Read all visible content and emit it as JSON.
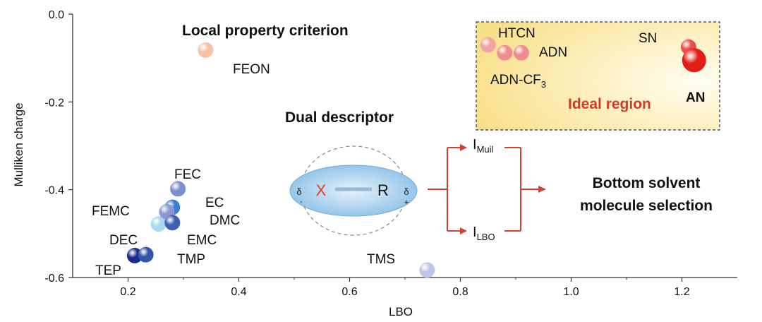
{
  "chart_data": {
    "type": "scatter",
    "xlabel": "LBO",
    "ylabel": "Mulliken charge",
    "xlim": [
      0.1,
      1.3
    ],
    "ylim": [
      -0.6,
      0.0
    ],
    "xticks": [
      0.2,
      0.4,
      0.6,
      0.8,
      1.0,
      1.2
    ],
    "xtick_labels": [
      "0.2",
      "0.4",
      "0.6",
      "0.8",
      "1.0",
      "1.2"
    ],
    "yticks": [
      0.0,
      -0.2,
      -0.4,
      -0.6
    ],
    "ytick_labels": [
      "0.0",
      "-0.2",
      "-0.4",
      "-0.6"
    ],
    "grid": false,
    "points": [
      {
        "label": "FEON",
        "x": 0.34,
        "y": -0.082,
        "color": "#f7c1a6",
        "size": 11
      },
      {
        "label": "FEC",
        "x": 0.29,
        "y": -0.398,
        "color": "#7b8fd0",
        "size": 11
      },
      {
        "label": "FEMC",
        "x": 0.255,
        "y": -0.478,
        "color": "#a8d8f0",
        "size": 11
      },
      {
        "label": "EC",
        "x": 0.28,
        "y": -0.44,
        "color": "#3b7fc8",
        "size": 11
      },
      {
        "label": "DMC",
        "x": 0.27,
        "y": -0.45,
        "color": "#8c98d4",
        "size": 11
      },
      {
        "label": "EMC",
        "x": 0.28,
        "y": -0.475,
        "color": "#3f5fb5",
        "size": 11
      },
      {
        "label": "DEC",
        "x": 0.212,
        "y": -0.55,
        "color": "#1a2c8a",
        "size": 11
      },
      {
        "label": "TMP",
        "x": 0.232,
        "y": -0.548,
        "color": "#2f56a8",
        "size": 11
      },
      {
        "label": "TMS",
        "x": 0.74,
        "y": -0.583,
        "color": "#bcc6e6",
        "size": 11
      },
      {
        "label": "HTCN",
        "x": 0.85,
        "y": -0.07,
        "color": "#f3a3a6",
        "size": 11
      },
      {
        "label": "ADN",
        "x": 0.88,
        "y": -0.088,
        "color": "#ee8c8f",
        "size": 11
      },
      {
        "label": "ADN-CF3",
        "x": 0.91,
        "y": -0.088,
        "color": "#ee8c8f",
        "size": 11
      },
      {
        "label": "SN",
        "x": 1.212,
        "y": -0.075,
        "color": "#e85050",
        "size": 11
      },
      {
        "label": "AN",
        "x": 1.222,
        "y": -0.105,
        "color": "#e01e16",
        "size": 17
      }
    ],
    "annotations": {
      "local": "Local property criterion",
      "dual": "Dual descriptor",
      "ideal": "Ideal region",
      "bottom_line1": "Bottom solvent",
      "bottom_line2": "molecule selection"
    },
    "labels": {
      "feon": "FEON",
      "fec": "FEC",
      "femc": "FEMC",
      "ec": "EC",
      "dmc": "DMC",
      "emc": "EMC",
      "dec": "DEC",
      "tmp": "TMP",
      "tep": "TEP",
      "tms": "TMS",
      "htcn": "HTCN",
      "adn": "ADN",
      "adncf3_base": "ADN-CF",
      "adncf3_sub": "3",
      "sn": "SN",
      "an": "AN"
    },
    "descriptor": {
      "x": "X",
      "r": "R",
      "delta": "δ",
      "minus": "-",
      "plus": "+",
      "i": "I",
      "muil": "Muil",
      "lbo": "LBO"
    }
  },
  "colors": {
    "axis": "#333333",
    "ideal_bg": "#fbeab5",
    "ideal_text": "#d23a2a",
    "arrow": "#d2402e",
    "ellipse": "#8fc2e8",
    "x_color": "#e23a2a"
  }
}
